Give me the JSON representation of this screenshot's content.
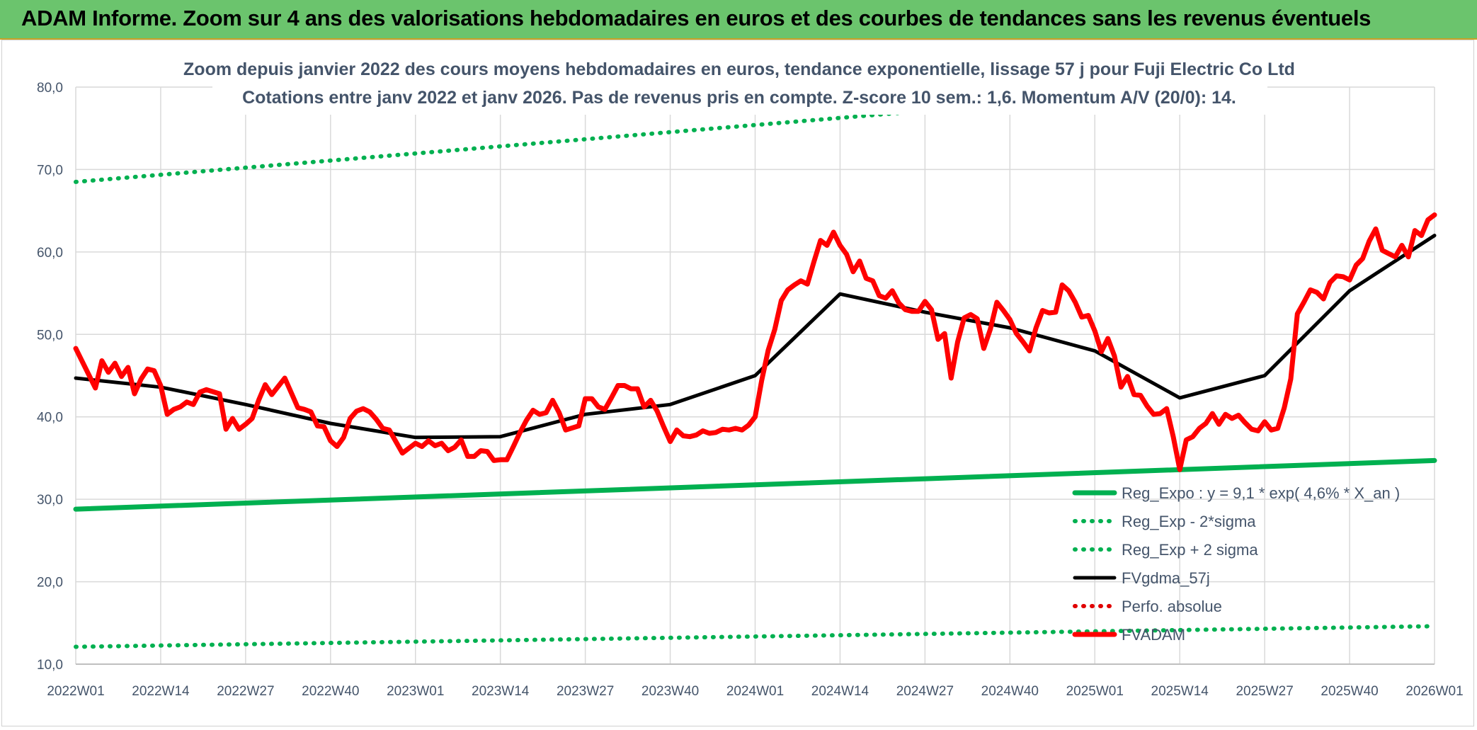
{
  "header": {
    "title": "ADAM Informe. Zoom sur 4 ans des valorisations hebdomadaires en euros et des courbes de tendances sans les revenus éventuels"
  },
  "chart_data": {
    "type": "line",
    "title": "Zoom depuis janvier 2022 des cours moyens hebdomadaires en euros, tendance exponentielle, lissage 57 j pour Fuji Electric Co Ltd",
    "subtitle": "Cotations entre janv 2022 et janv 2026. Pas de revenus pris en compte. Z-score 10 sem.: 1,6. Momentum A/V (20/0): 14.",
    "xlabel": "",
    "ylabel": "",
    "ylim": [
      10,
      80
    ],
    "y_ticks": [
      "10,0",
      "20,0",
      "30,0",
      "40,0",
      "50,0",
      "60,0",
      "70,0",
      "80,0"
    ],
    "x_ticks": [
      "2022W01",
      "2022W14",
      "2022W27",
      "2022W40",
      "2023W01",
      "2023W14",
      "2023W27",
      "2023W40",
      "2024W01",
      "2024W14",
      "2024W27",
      "2024W40",
      "2025W01",
      "2025W14",
      "2025W27",
      "2025W40",
      "2026W01"
    ],
    "grid": true,
    "legend_position": "bottom-right",
    "colors": {
      "trend": "#00b050",
      "smooth": "#000000",
      "perf": "#e00000",
      "price": "#ff0000"
    },
    "series": [
      {
        "name": "Reg_Expo : y = 9,1 * exp( 4,6% *  X_an )",
        "style": "solid-thick",
        "color": "#00b050",
        "x": [
          0,
          208
        ],
        "y": [
          28.8,
          34.7
        ]
      },
      {
        "name": "Reg_Exp - 2*sigma",
        "style": "dotted",
        "color": "#00b050",
        "x": [
          0,
          208
        ],
        "y": [
          12.1,
          14.6
        ]
      },
      {
        "name": "Reg_Exp + 2 sigma",
        "style": "dotted",
        "color": "#00b050",
        "x": [
          0,
          208
        ],
        "y": [
          68.5,
          82.3
        ]
      },
      {
        "name": "FVgdma_57j",
        "style": "solid",
        "color": "#000000",
        "x": [
          0,
          13,
          26,
          39,
          52,
          65,
          78,
          91,
          104,
          117,
          130,
          143,
          156,
          169,
          182,
          195,
          208
        ],
        "y": [
          44.7,
          43.6,
          41.5,
          39.2,
          37.5,
          37.6,
          40.3,
          41.5,
          45.0,
          54.9,
          52.7,
          50.8,
          48.0,
          42.3,
          45.0,
          55.3,
          62.0
        ]
      },
      {
        "name": "Perfo. absolue",
        "style": "dotted",
        "color": "#e00000",
        "x": [],
        "y": []
      },
      {
        "name": "FVADAM",
        "style": "solid-thick",
        "color": "#ff0000",
        "x": [
          0,
          3,
          4,
          5,
          6,
          7,
          8,
          9,
          10,
          11,
          12,
          13,
          14,
          15,
          16,
          17,
          18,
          19,
          20,
          22,
          23,
          24,
          25,
          26,
          27,
          28,
          29,
          30,
          32,
          33,
          34,
          35,
          36,
          37,
          38,
          39,
          40,
          41,
          42,
          43,
          44,
          45,
          46,
          47,
          48,
          50,
          51,
          52,
          53,
          54,
          55,
          56,
          57,
          58,
          59,
          60,
          61,
          62,
          63,
          64,
          65,
          66,
          67,
          68,
          69,
          70,
          71,
          72,
          73,
          74,
          75,
          77,
          78,
          79,
          80,
          81,
          82,
          83,
          84,
          85,
          86,
          87,
          88,
          89,
          90,
          91,
          92,
          93,
          94,
          95,
          96,
          97,
          98,
          99,
          100,
          101,
          102,
          103,
          104,
          105,
          106,
          107,
          108,
          109,
          110,
          111,
          112,
          113,
          114,
          115,
          116,
          117,
          118,
          119,
          120,
          121,
          122,
          123,
          124,
          125,
          126,
          127,
          128,
          129,
          130,
          131,
          132,
          133,
          134,
          135,
          136,
          137,
          138,
          139,
          140,
          141,
          142,
          143,
          144,
          145,
          146,
          147,
          148,
          149,
          150,
          151,
          152,
          153,
          154,
          155,
          156,
          157,
          158,
          159,
          160,
          161,
          162,
          163,
          164,
          165,
          166,
          167,
          168,
          169,
          170,
          171,
          172,
          173,
          174,
          175,
          176,
          177,
          178,
          179,
          180,
          181,
          182,
          183,
          184,
          185,
          186,
          187,
          188,
          189,
          190,
          191,
          192,
          193,
          194,
          195,
          196,
          197,
          198,
          199,
          200,
          201,
          202,
          203,
          204,
          205,
          206,
          207,
          208
        ],
        "y": [
          48.3,
          43.5,
          46.8,
          45.4,
          46.5,
          44.9,
          46.0,
          42.8,
          44.6,
          45.8,
          45.6,
          43.8,
          40.3,
          40.9,
          41.2,
          41.8,
          41.5,
          43.0,
          43.3,
          42.8,
          38.5,
          39.8,
          38.5,
          39.1,
          39.8,
          42.0,
          43.9,
          42.7,
          44.7,
          42.9,
          41.1,
          40.9,
          40.6,
          38.9,
          38.8,
          37.1,
          36.4,
          37.5,
          39.8,
          40.7,
          41.0,
          40.6,
          39.7,
          38.6,
          38.4,
          35.6,
          36.2,
          36.8,
          36.4,
          37.1,
          36.5,
          36.8,
          35.9,
          36.3,
          37.2,
          35.2,
          35.2,
          35.9,
          35.8,
          34.7,
          34.8,
          34.8,
          36.4,
          38.1,
          39.6,
          40.8,
          40.3,
          40.5,
          42.0,
          40.5,
          38.4,
          38.9,
          42.2,
          42.2,
          41.2,
          40.9,
          42.3,
          43.8,
          43.8,
          43.4,
          43.4,
          41.2,
          42.0,
          40.7,
          38.8,
          37.0,
          38.4,
          37.7,
          37.6,
          37.8,
          38.3,
          38.0,
          38.1,
          38.5,
          38.4,
          38.6,
          38.4,
          39.0,
          40.0,
          44.4,
          48.1,
          50.6,
          54.1,
          55.4,
          56.0,
          56.5,
          56.1,
          58.8,
          61.4,
          60.8,
          62.4,
          60.8,
          59.7,
          57.6,
          58.9,
          56.8,
          56.5,
          54.7,
          54.4,
          55.3,
          53.8,
          53.0,
          52.8,
          52.8,
          54.0,
          53.0,
          49.4,
          50.1,
          44.7,
          49.1,
          52.0,
          52.4,
          51.9,
          48.3,
          50.6,
          53.9,
          52.9,
          51.8,
          50.1,
          49.1,
          48.0,
          50.8,
          52.9,
          52.6,
          52.7,
          56.0,
          55.3,
          53.9,
          52.1,
          52.3,
          50.4,
          47.9,
          49.5,
          47.4,
          43.6,
          44.9,
          42.7,
          42.6,
          41.3,
          40.3,
          40.4,
          41.0,
          37.6,
          33.6,
          37.2,
          37.6,
          38.6,
          39.2,
          40.4,
          39.1,
          40.3,
          39.8,
          40.2,
          39.3,
          38.5,
          38.3,
          39.4,
          38.4,
          38.6,
          41.1,
          44.6,
          52.5,
          53.9,
          55.4,
          55.1,
          54.3,
          56.3,
          57.1,
          57.0,
          56.6,
          58.4,
          59.2,
          61.3,
          62.8,
          60.2,
          59.8,
          59.4,
          60.8,
          59.4,
          62.6,
          62.0,
          63.9,
          64.5
        ]
      }
    ]
  }
}
